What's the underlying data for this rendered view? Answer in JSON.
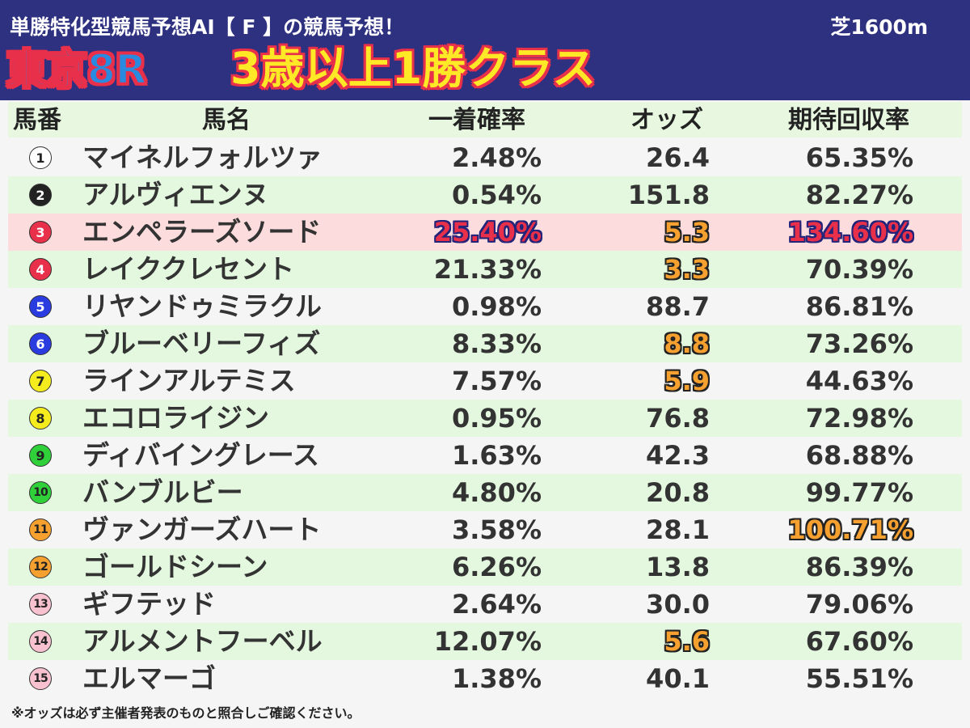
{
  "header": {
    "subtitle": "単勝特化型競馬予想AI【 F 】の競馬予想！",
    "surface": "芝1600m",
    "race": "東京8R",
    "race_class": "3歳以上1勝クラス"
  },
  "columns": {
    "number": "馬番",
    "name": "馬名",
    "win_rate": "一着確率",
    "odds": "オッズ",
    "roi": "期待回収率"
  },
  "horses": [
    {
      "num": "1",
      "name": "マイネルフォルツァ",
      "win_rate": "2.48%",
      "odds": "26.4",
      "roi": "65.35%"
    },
    {
      "num": "2",
      "name": "アルヴィエンヌ",
      "win_rate": "0.54%",
      "odds": "151.8",
      "roi": "82.27%"
    },
    {
      "num": "3",
      "name": "エンペラーズソード",
      "win_rate": "25.40%",
      "odds": "5.3",
      "roi": "134.60%"
    },
    {
      "num": "4",
      "name": "レイククレセント",
      "win_rate": "21.33%",
      "odds": "3.3",
      "roi": "70.39%"
    },
    {
      "num": "5",
      "name": "リヤンドゥミラクル",
      "win_rate": "0.98%",
      "odds": "88.7",
      "roi": "86.81%"
    },
    {
      "num": "6",
      "name": "ブルーベリーフィズ",
      "win_rate": "8.33%",
      "odds": "8.8",
      "roi": "73.26%"
    },
    {
      "num": "7",
      "name": "ラインアルテミス",
      "win_rate": "7.57%",
      "odds": "5.9",
      "roi": "44.63%"
    },
    {
      "num": "8",
      "name": "エコロライジン",
      "win_rate": "0.95%",
      "odds": "76.8",
      "roi": "72.98%"
    },
    {
      "num": "9",
      "name": "ディバイングレース",
      "win_rate": "1.63%",
      "odds": "42.3",
      "roi": "68.88%"
    },
    {
      "num": "10",
      "name": "バンブルビー",
      "win_rate": "4.80%",
      "odds": "20.8",
      "roi": "99.77%"
    },
    {
      "num": "11",
      "name": "ヴァンガーズハート",
      "win_rate": "3.58%",
      "odds": "28.1",
      "roi": "100.71%"
    },
    {
      "num": "12",
      "name": "ゴールドシーン",
      "win_rate": "6.26%",
      "odds": "13.8",
      "roi": "86.39%"
    },
    {
      "num": "13",
      "name": "ギフテッド",
      "win_rate": "2.64%",
      "odds": "30.0",
      "roi": "79.06%"
    },
    {
      "num": "14",
      "name": "アルメントフーベル",
      "win_rate": "12.07%",
      "odds": "5.6",
      "roi": "67.60%"
    },
    {
      "num": "15",
      "name": "エルマーゴ",
      "win_rate": "1.38%",
      "odds": "40.1",
      "roi": "55.51%"
    }
  ],
  "gate_colors": {
    "1": {
      "bg": "#ffffff",
      "fg": "#222222"
    },
    "2": {
      "bg": "#222222",
      "fg": "#ffffff"
    },
    "3": {
      "bg": "#e8304a",
      "fg": "#ffffff"
    },
    "4": {
      "bg": "#2a3be0",
      "fg": "#ffffff"
    },
    "5": {
      "bg": "#f5ec1e",
      "fg": "#222222"
    },
    "6": {
      "bg": "#2fd03a",
      "fg": "#222222"
    },
    "7": {
      "bg": "#f6a030",
      "fg": "#222222"
    },
    "8": {
      "bg": "#f7c1cf",
      "fg": "#222222"
    }
  },
  "footnote": "※オッズは必ず主催者発表のものと照合しご確認ください。"
}
